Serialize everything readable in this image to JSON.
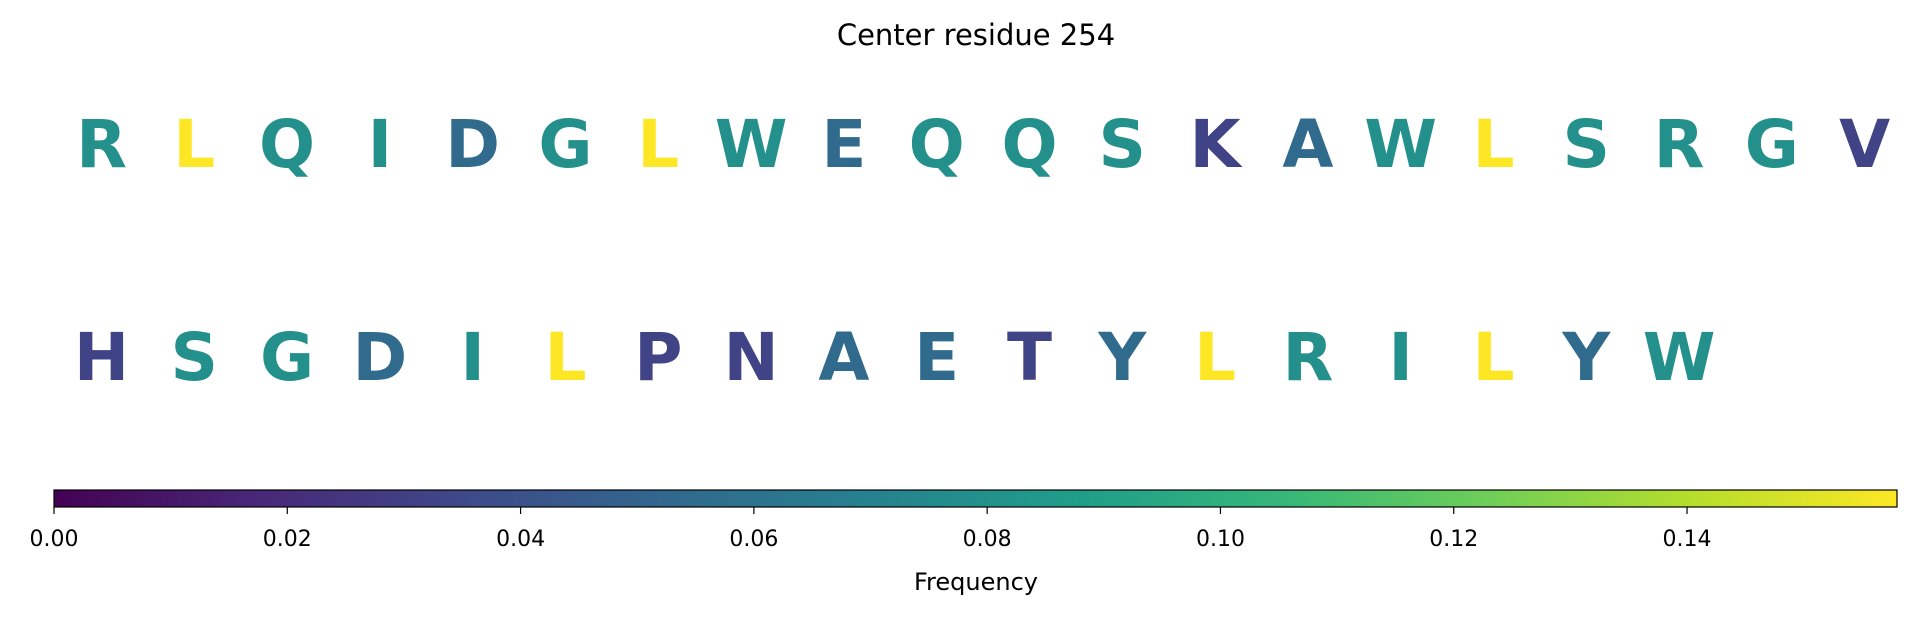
{
  "chart_data": {
    "type": "residue-heatmap",
    "title": "Center residue 254",
    "rows": [
      {
        "residues": [
          "R",
          "L",
          "Q",
          "I",
          "D",
          "G",
          "L",
          "W",
          "E",
          "Q",
          "Q",
          "S",
          "K",
          "A",
          "W",
          "L",
          "S",
          "R",
          "G",
          "V"
        ],
        "values": [
          0.079,
          0.158,
          0.079,
          0.079,
          0.055,
          0.079,
          0.158,
          0.079,
          0.055,
          0.079,
          0.079,
          0.079,
          0.032,
          0.055,
          0.079,
          0.158,
          0.079,
          0.079,
          0.079,
          0.032
        ]
      },
      {
        "residues": [
          "H",
          "S",
          "G",
          "D",
          "I",
          "L",
          "P",
          "N",
          "A",
          "E",
          "T",
          "Y",
          "L",
          "R",
          "I",
          "L",
          "Y",
          "W"
        ],
        "values": [
          0.032,
          0.079,
          0.079,
          0.055,
          0.079,
          0.158,
          0.032,
          0.032,
          0.055,
          0.055,
          0.032,
          0.055,
          0.158,
          0.079,
          0.079,
          0.158,
          0.055,
          0.079
        ]
      }
    ],
    "colormap": [
      "#440154",
      "#482878",
      "#3e4989",
      "#31688e",
      "#26828e",
      "#1f9e89",
      "#35b779",
      "#6ece58",
      "#b5de2b",
      "#fde725"
    ],
    "clim": [
      0,
      0.158
    ],
    "cticks": [
      {
        "value": 0,
        "label": "0.00"
      },
      0.02,
      0.04,
      0.06,
      0.08,
      {
        "value": 0.1,
        "label": "0.10"
      },
      0.12,
      0.14
    ],
    "colorbar_label": "Frequency"
  }
}
